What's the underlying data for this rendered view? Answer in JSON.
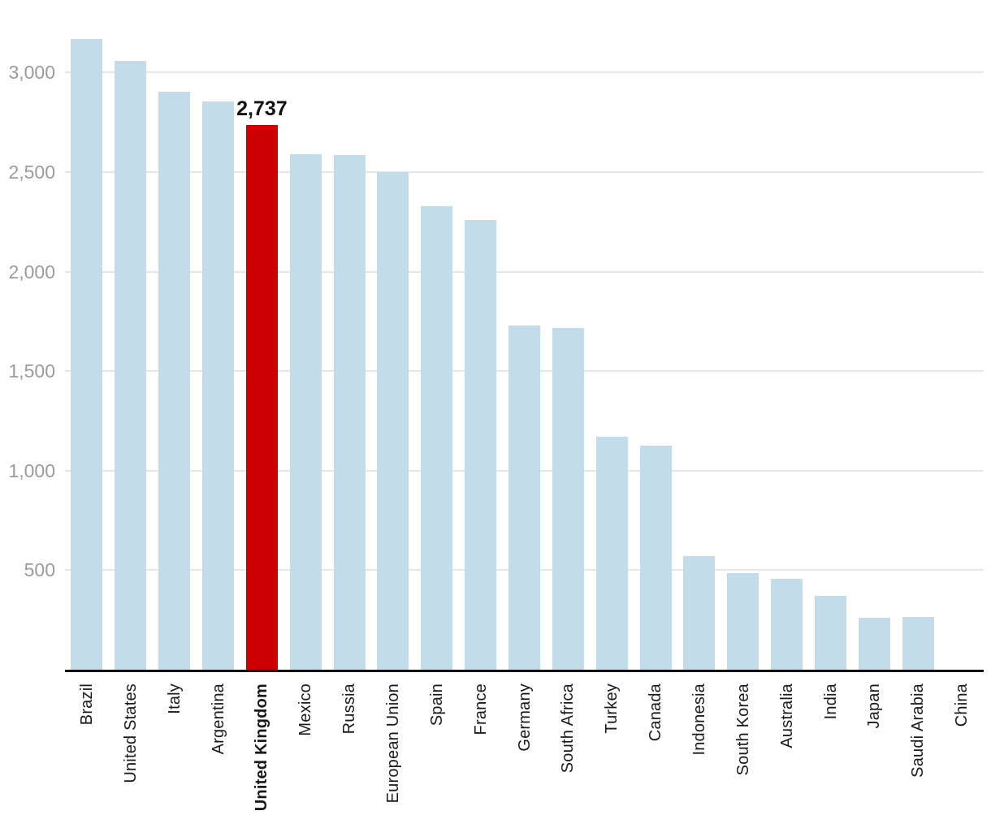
{
  "chart_data": {
    "type": "bar",
    "title": "",
    "xlabel": "",
    "ylabel": "",
    "categories": [
      "Brazil",
      "United States",
      "Italy",
      "Argentina",
      "United Kingdom",
      "Mexico",
      "Russia",
      "European Union",
      "Spain",
      "France",
      "Germany",
      "South Africa",
      "Turkey",
      "Canada",
      "Indonesia",
      "South Korea",
      "Australia",
      "India",
      "Japan",
      "Saudi Arabia",
      "China"
    ],
    "values": [
      3170,
      3060,
      2905,
      2855,
      2737,
      2590,
      2585,
      2500,
      2330,
      2260,
      1730,
      1715,
      1170,
      1125,
      570,
      485,
      455,
      370,
      260,
      265,
      0
    ],
    "highlight_category": "United Kingdom",
    "highlight_index": 4,
    "annotation": {
      "text": "2,737",
      "for_category": "United Kingdom"
    },
    "y_ticks": [
      {
        "label": "500",
        "value": 500
      },
      {
        "label": "1,000",
        "value": 1000
      },
      {
        "label": "1,500",
        "value": 1500
      },
      {
        "label": "2,000",
        "value": 2000
      },
      {
        "label": "2,500",
        "value": 2500
      },
      {
        "label": "3,000",
        "value": 3000
      }
    ],
    "ylim": [
      0,
      3000
    ],
    "grid": "horizontal",
    "legend": "none",
    "colors": {
      "bar_default": "#c2dcea",
      "bar_highlight": "#cc0000",
      "gridline": "#e6e6e6",
      "axis_line": "#0a0a0a",
      "y_tick_text": "#9b9b9b",
      "x_tick_text": "#1a1a1a",
      "annotation_text": "#111111"
    }
  }
}
